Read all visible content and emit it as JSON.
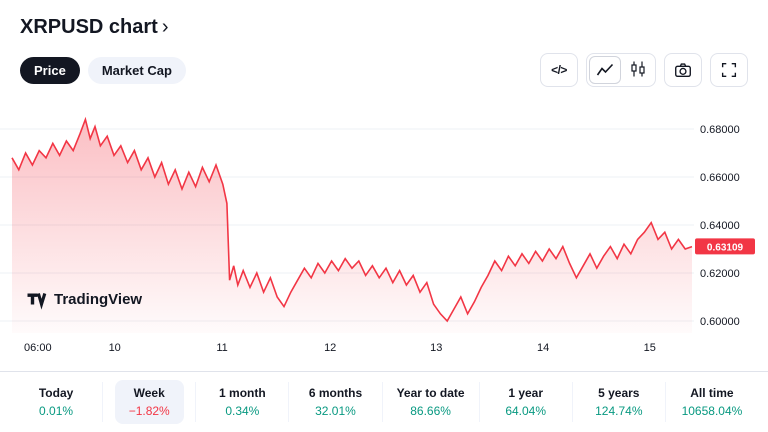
{
  "header": {
    "title": "XRPUSD chart",
    "chevron": "›"
  },
  "toggles": {
    "price": "Price",
    "market_cap": "Market Cap"
  },
  "toolbar": {
    "code_label": "</>",
    "icons": [
      "code-icon",
      "area-chart-icon",
      "candlestick-icon",
      "camera-icon",
      "fullscreen-icon"
    ]
  },
  "watermark": {
    "brand": "TradingView"
  },
  "colors": {
    "up": "#089981",
    "down": "#F23645",
    "accent_dark": "#131722",
    "pill_gray": "#F0F3FA"
  },
  "chart_data": {
    "type": "area",
    "symbol": "XRPUSD",
    "line_color": "#F23645",
    "fill_color": "#F23645",
    "grid_color": "#EDF0F4",
    "ylim": [
      0.595,
      0.695
    ],
    "y_ticks": [
      {
        "value": 0.68,
        "label": "0.68000"
      },
      {
        "value": 0.66,
        "label": "0.66000"
      },
      {
        "value": 0.64,
        "label": "0.64000"
      },
      {
        "value": 0.62,
        "label": "0.62000"
      },
      {
        "value": 0.6,
        "label": "0.60000"
      }
    ],
    "x_ticks": [
      {
        "label": "06:00",
        "pos": 0.038
      },
      {
        "label": "10",
        "pos": 0.151
      },
      {
        "label": "11",
        "pos": 0.309
      },
      {
        "label": "12",
        "pos": 0.468
      },
      {
        "label": "13",
        "pos": 0.624
      },
      {
        "label": "14",
        "pos": 0.781
      },
      {
        "label": "15",
        "pos": 0.938
      }
    ],
    "current_price": 0.63109,
    "current_price_label": "0.63109",
    "points": [
      [
        0,
        0.668
      ],
      [
        1,
        0.663
      ],
      [
        2,
        0.67
      ],
      [
        3,
        0.665
      ],
      [
        4,
        0.671
      ],
      [
        5,
        0.668
      ],
      [
        6,
        0.674
      ],
      [
        7,
        0.669
      ],
      [
        8,
        0.675
      ],
      [
        9,
        0.671
      ],
      [
        10,
        0.678
      ],
      [
        10.8,
        0.684
      ],
      [
        11.5,
        0.676
      ],
      [
        12.2,
        0.681
      ],
      [
        13,
        0.673
      ],
      [
        14,
        0.677
      ],
      [
        15,
        0.669
      ],
      [
        16,
        0.673
      ],
      [
        17,
        0.666
      ],
      [
        18,
        0.671
      ],
      [
        19,
        0.663
      ],
      [
        20,
        0.668
      ],
      [
        21,
        0.66
      ],
      [
        22,
        0.666
      ],
      [
        23,
        0.657
      ],
      [
        24,
        0.663
      ],
      [
        25,
        0.655
      ],
      [
        26,
        0.662
      ],
      [
        27,
        0.656
      ],
      [
        28,
        0.664
      ],
      [
        29,
        0.658
      ],
      [
        30,
        0.665
      ],
      [
        31,
        0.657
      ],
      [
        31.6,
        0.649
      ],
      [
        32,
        0.617
      ],
      [
        32.6,
        0.623
      ],
      [
        33.2,
        0.615
      ],
      [
        34,
        0.621
      ],
      [
        35,
        0.614
      ],
      [
        36,
        0.62
      ],
      [
        37,
        0.612
      ],
      [
        38,
        0.618
      ],
      [
        39,
        0.61
      ],
      [
        40,
        0.606
      ],
      [
        41,
        0.612
      ],
      [
        42,
        0.617
      ],
      [
        43,
        0.622
      ],
      [
        44,
        0.618
      ],
      [
        45,
        0.624
      ],
      [
        46,
        0.62
      ],
      [
        47,
        0.625
      ],
      [
        48,
        0.621
      ],
      [
        49,
        0.626
      ],
      [
        50,
        0.622
      ],
      [
        51,
        0.625
      ],
      [
        52,
        0.619
      ],
      [
        53,
        0.623
      ],
      [
        54,
        0.618
      ],
      [
        55,
        0.622
      ],
      [
        56,
        0.616
      ],
      [
        57,
        0.621
      ],
      [
        58,
        0.615
      ],
      [
        59,
        0.619
      ],
      [
        60,
        0.612
      ],
      [
        61,
        0.616
      ],
      [
        62,
        0.607
      ],
      [
        63,
        0.603
      ],
      [
        64,
        0.6
      ],
      [
        65,
        0.605
      ],
      [
        66,
        0.61
      ],
      [
        67,
        0.603
      ],
      [
        68,
        0.608
      ],
      [
        69,
        0.614
      ],
      [
        70,
        0.619
      ],
      [
        71,
        0.625
      ],
      [
        72,
        0.621
      ],
      [
        73,
        0.627
      ],
      [
        74,
        0.623
      ],
      [
        75,
        0.628
      ],
      [
        76,
        0.624
      ],
      [
        77,
        0.629
      ],
      [
        78,
        0.625
      ],
      [
        79,
        0.63
      ],
      [
        80,
        0.626
      ],
      [
        81,
        0.631
      ],
      [
        82,
        0.624
      ],
      [
        83,
        0.618
      ],
      [
        84,
        0.623
      ],
      [
        85,
        0.628
      ],
      [
        86,
        0.622
      ],
      [
        87,
        0.627
      ],
      [
        88,
        0.631
      ],
      [
        89,
        0.626
      ],
      [
        90,
        0.632
      ],
      [
        91,
        0.628
      ],
      [
        92,
        0.634
      ],
      [
        93,
        0.637
      ],
      [
        94,
        0.641
      ],
      [
        95,
        0.634
      ],
      [
        96,
        0.637
      ],
      [
        97,
        0.63
      ],
      [
        98,
        0.634
      ],
      [
        99,
        0.63
      ],
      [
        100,
        0.631
      ]
    ]
  },
  "stats": [
    {
      "id": "today",
      "label": "Today",
      "value": "0.01%",
      "trend": "up",
      "selected": false
    },
    {
      "id": "week",
      "label": "Week",
      "value": "−1.82%",
      "trend": "down",
      "selected": true
    },
    {
      "id": "1-month",
      "label": "1 month",
      "value": "0.34%",
      "trend": "up",
      "selected": false
    },
    {
      "id": "6-months",
      "label": "6 months",
      "value": "32.01%",
      "trend": "up",
      "selected": false
    },
    {
      "id": "year-to-date",
      "label": "Year to date",
      "value": "86.66%",
      "trend": "up",
      "selected": false
    },
    {
      "id": "1-year",
      "label": "1 year",
      "value": "64.04%",
      "trend": "up",
      "selected": false
    },
    {
      "id": "5-years",
      "label": "5 years",
      "value": "124.74%",
      "trend": "up",
      "selected": false
    },
    {
      "id": "all-time",
      "label": "All time",
      "value": "10658.04%",
      "trend": "up",
      "selected": false
    }
  ]
}
